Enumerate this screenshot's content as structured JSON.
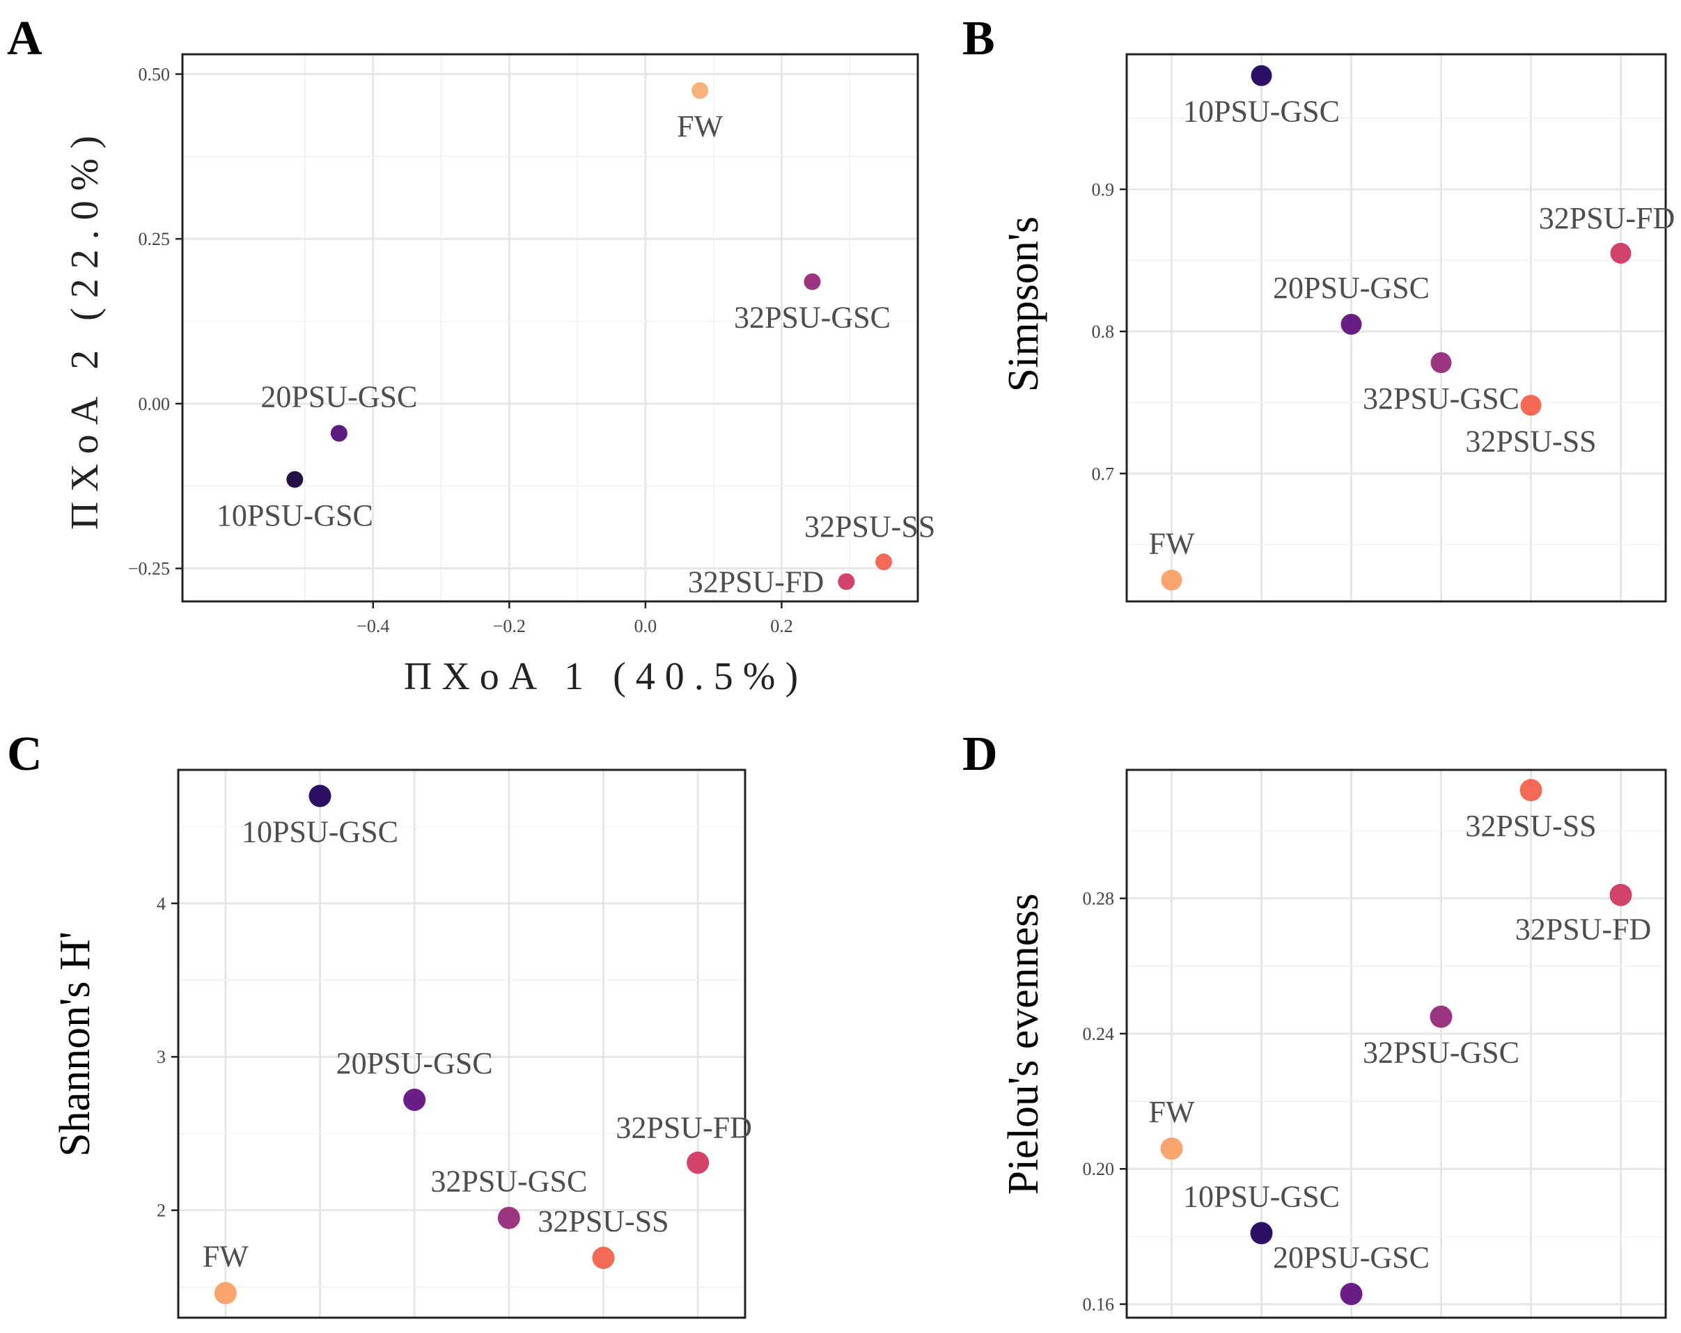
{
  "chart_data": [
    {
      "panel": "A",
      "type": "scatter",
      "xlabel": "ΠΧοΑ 1 (40.5%)",
      "ylabel": "ΠΧοΑ 2 (22.0%)",
      "xlim": [
        -0.68,
        0.4
      ],
      "ylim": [
        -0.3,
        0.53
      ],
      "xticks": [
        -0.4,
        -0.2,
        0.0,
        0.2
      ],
      "xtick_labels": [
        "−0.4",
        "−0.2",
        "0.0",
        "0.2"
      ],
      "yticks": [
        -0.25,
        0.0,
        0.25,
        0.5
      ],
      "ytick_labels": [
        "−0.25",
        "0.00",
        "0.25",
        "0.50"
      ],
      "points": [
        {
          "label": "FW",
          "x": 0.08,
          "y": 0.475,
          "color": "#fcb07a",
          "label_pos": "below"
        },
        {
          "label": "32PSU-GSC",
          "x": 0.245,
          "y": 0.185,
          "color": "#9c3580",
          "label_pos": "below"
        },
        {
          "label": "20PSU-GSC",
          "x": -0.45,
          "y": -0.045,
          "color": "#5b1e80",
          "label_pos": "above"
        },
        {
          "label": "10PSU-GSC",
          "x": -0.515,
          "y": -0.115,
          "color": "#241046",
          "label_pos": "below"
        },
        {
          "label": "32PSU-SS",
          "x": 0.35,
          "y": -0.24,
          "color": "#f26a56",
          "label_pos": "above-left"
        },
        {
          "label": "32PSU-FD",
          "x": 0.295,
          "y": -0.27,
          "color": "#d3426b",
          "label_pos": "left"
        }
      ]
    },
    {
      "panel": "B",
      "type": "scatter",
      "xlabel": "",
      "ylabel": "Simpson's",
      "xlim": [
        0.5,
        6.5
      ],
      "ylim": [
        0.61,
        0.995
      ],
      "yticks": [
        0.7,
        0.8,
        0.9
      ],
      "ytick_labels": [
        "0.7",
        "0.8",
        "0.9"
      ],
      "points": [
        {
          "label": "10PSU-GSC",
          "x": 2,
          "y": 0.98,
          "color": "#2b1064",
          "label_pos": "below"
        },
        {
          "label": "32PSU-FD",
          "x": 6,
          "y": 0.855,
          "color": "#d3426b",
          "label_pos": "above-left"
        },
        {
          "label": "20PSU-GSC",
          "x": 3,
          "y": 0.805,
          "color": "#6b1e86",
          "label_pos": "above"
        },
        {
          "label": "32PSU-GSC",
          "x": 4,
          "y": 0.778,
          "color": "#9c3580",
          "label_pos": "below"
        },
        {
          "label": "32PSU-SS",
          "x": 5,
          "y": 0.748,
          "color": "#f26a56",
          "label_pos": "below"
        },
        {
          "label": "FW",
          "x": 1,
          "y": 0.625,
          "color": "#fca46e",
          "label_pos": "above"
        }
      ]
    },
    {
      "panel": "C",
      "type": "scatter",
      "xlabel": "",
      "ylabel": "Shannon's H'",
      "xlim": [
        0.5,
        6.5
      ],
      "ylim": [
        1.3,
        4.87
      ],
      "yticks": [
        2,
        3,
        4
      ],
      "ytick_labels": [
        "2",
        "3",
        "4"
      ],
      "points": [
        {
          "label": "10PSU-GSC",
          "x": 2,
          "y": 4.7,
          "color": "#2b1064",
          "label_pos": "below"
        },
        {
          "label": "20PSU-GSC",
          "x": 3,
          "y": 2.72,
          "color": "#6b1e86",
          "label_pos": "above"
        },
        {
          "label": "32PSU-FD",
          "x": 6,
          "y": 2.31,
          "color": "#d3426b",
          "label_pos": "above-left"
        },
        {
          "label": "32PSU-GSC",
          "x": 4,
          "y": 1.95,
          "color": "#9c3580",
          "label_pos": "above"
        },
        {
          "label": "32PSU-SS",
          "x": 5,
          "y": 1.69,
          "color": "#f26a56",
          "label_pos": "above"
        },
        {
          "label": "FW",
          "x": 1,
          "y": 1.46,
          "color": "#fca46e",
          "label_pos": "above"
        }
      ]
    },
    {
      "panel": "D",
      "type": "scatter",
      "xlabel": "",
      "ylabel": "Pielou's evenness",
      "xlim": [
        0.5,
        6.5
      ],
      "ylim": [
        0.156,
        0.318
      ],
      "yticks": [
        0.16,
        0.2,
        0.24,
        0.28
      ],
      "ytick_labels": [
        "0.16",
        "0.20",
        "0.24",
        "0.28"
      ],
      "points": [
        {
          "label": "32PSU-SS",
          "x": 5,
          "y": 0.312,
          "color": "#f26a56",
          "label_pos": "below"
        },
        {
          "label": "32PSU-FD",
          "x": 6,
          "y": 0.281,
          "color": "#d3426b",
          "label_pos": "below-left"
        },
        {
          "label": "32PSU-GSC",
          "x": 4,
          "y": 0.245,
          "color": "#9c3580",
          "label_pos": "below"
        },
        {
          "label": "FW",
          "x": 1,
          "y": 0.206,
          "color": "#fca46e",
          "label_pos": "above"
        },
        {
          "label": "10PSU-GSC",
          "x": 2,
          "y": 0.181,
          "color": "#2b1064",
          "label_pos": "above"
        },
        {
          "label": "20PSU-GSC",
          "x": 3,
          "y": 0.163,
          "color": "#6b1e86",
          "label_pos": "above"
        }
      ]
    }
  ]
}
